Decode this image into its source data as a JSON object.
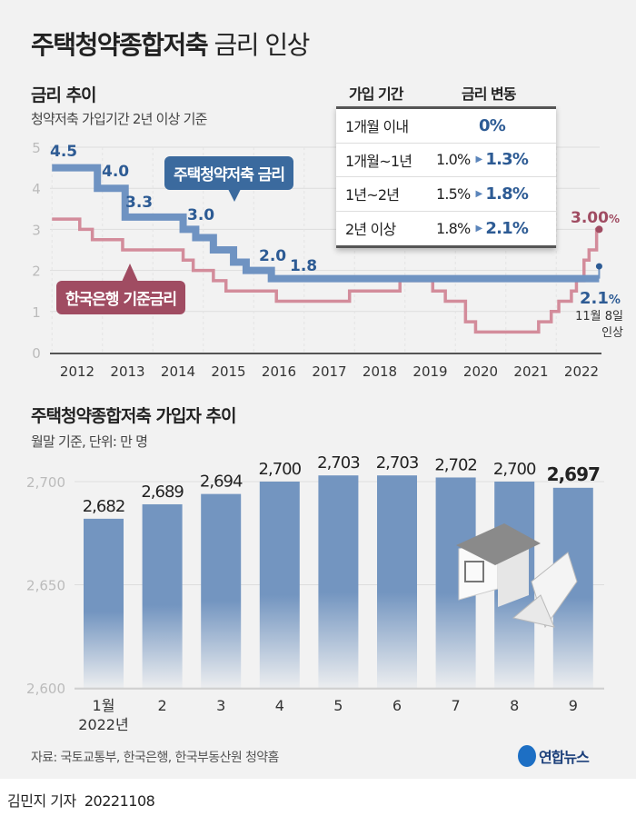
{
  "title": {
    "bold": "주택청약종합저축",
    "regular": "금리 인상"
  },
  "colors": {
    "blue_line": "#6f93c2",
    "pink_line": "#d38c9b",
    "blue_label": "#3b6a9e",
    "red_label": "#a04c62",
    "bar": "#7395c0"
  },
  "chart_data": [
    {
      "type": "line",
      "title": "금리 추이",
      "subtitle": "청약저축 가입기간 2년 이상 기준",
      "ylim": [
        0,
        5
      ],
      "yticks": [
        "0",
        "1",
        "2",
        "3",
        "4",
        "5"
      ],
      "xticks": [
        "2012",
        "2013",
        "2014",
        "2015",
        "2016",
        "2017",
        "2018",
        "2019",
        "2020",
        "2021",
        "2022"
      ],
      "series": [
        {
          "name": "주택청약저축 금리",
          "step_points": [
            [
              2012.0,
              4.5
            ],
            [
              2012.9,
              4.0
            ],
            [
              2013.45,
              3.3
            ],
            [
              2014.6,
              3.0
            ],
            [
              2014.85,
              2.8
            ],
            [
              2015.2,
              2.5
            ],
            [
              2015.6,
              2.2
            ],
            [
              2015.85,
              2.0
            ],
            [
              2016.35,
              1.8
            ],
            [
              2022.85,
              1.8
            ]
          ],
          "labels": [
            "4.5",
            "4.0",
            "3.3",
            "3.0",
            "2.0",
            "1.8"
          ],
          "end_value": "2.1",
          "end_unit": "%"
        },
        {
          "name": "한국은행 기준금리",
          "step_points": [
            [
              2012.0,
              3.25
            ],
            [
              2012.55,
              3.0
            ],
            [
              2012.8,
              2.75
            ],
            [
              2013.4,
              2.5
            ],
            [
              2014.6,
              2.25
            ],
            [
              2014.8,
              2.0
            ],
            [
              2015.2,
              1.75
            ],
            [
              2015.45,
              1.5
            ],
            [
              2016.45,
              1.25
            ],
            [
              2017.9,
              1.5
            ],
            [
              2018.9,
              1.75
            ],
            [
              2019.55,
              1.5
            ],
            [
              2019.8,
              1.25
            ],
            [
              2020.2,
              0.75
            ],
            [
              2020.4,
              0.5
            ],
            [
              2021.65,
              0.75
            ],
            [
              2021.9,
              1.0
            ],
            [
              2022.05,
              1.25
            ],
            [
              2022.3,
              1.5
            ],
            [
              2022.4,
              1.75
            ],
            [
              2022.55,
              2.25
            ],
            [
              2022.65,
              2.5
            ],
            [
              2022.8,
              3.0
            ],
            [
              2022.85,
              3.0
            ]
          ],
          "end_value": "3.00",
          "end_unit": "%"
        }
      ],
      "annotation": [
        "11월 8일",
        "인상"
      ]
    },
    {
      "type": "bar",
      "title": "주택청약종합저축 가입자 추이",
      "subtitle": "월말 기준, 단위: 만 명",
      "categories": [
        "1월",
        "2",
        "3",
        "4",
        "5",
        "6",
        "7",
        "8",
        "9"
      ],
      "category_year": "2022년",
      "values": [
        2682,
        2689,
        2694,
        2700,
        2703,
        2703,
        2702,
        2700,
        2697
      ],
      "value_labels": [
        "2,682",
        "2,689",
        "2,694",
        "2,700",
        "2,703",
        "2,703",
        "2,702",
        "2,700",
        "2,697"
      ],
      "ylim": [
        2600,
        2700
      ],
      "yticks": [
        "2,600",
        "2,650",
        "2,700"
      ]
    }
  ],
  "table": {
    "headers": [
      "가입 기간",
      "금리 변동"
    ],
    "rows": [
      {
        "period": "1개월 이내",
        "old": "",
        "new": "0%"
      },
      {
        "period": "1개월~1년",
        "old": "1.0%",
        "new": "1.3%"
      },
      {
        "period": "1년~2년",
        "old": "1.5%",
        "new": "1.8%"
      },
      {
        "period": "2년 이상",
        "old": "1.8%",
        "new": "2.1%"
      }
    ]
  },
  "source": "자료: 국토교통부, 한국은행, 한국부동산원 청약홈",
  "logo": "연합뉴스",
  "byline": {
    "author": "김민지 기자",
    "date": "20221108"
  }
}
